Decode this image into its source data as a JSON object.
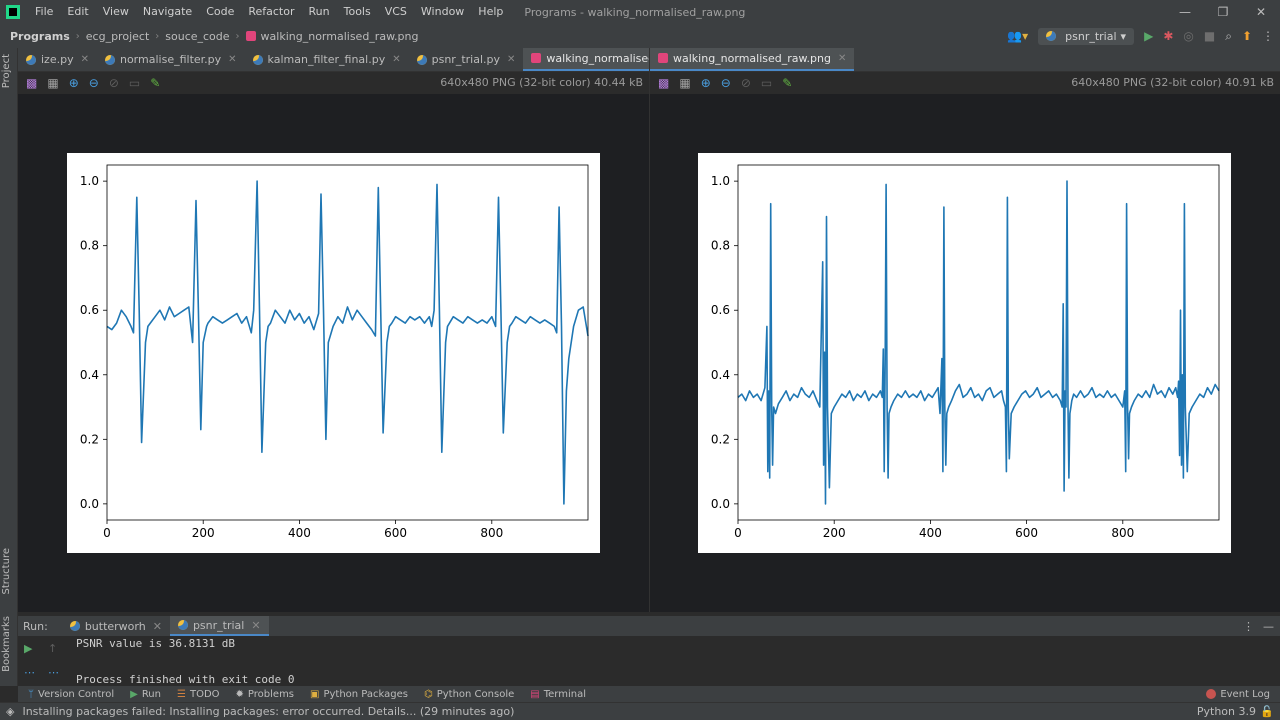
{
  "menu": {
    "items": [
      "File",
      "Edit",
      "View",
      "Navigate",
      "Code",
      "Refactor",
      "Run",
      "Tools",
      "VCS",
      "Window",
      "Help"
    ],
    "window_title": "Programs - walking_normalised_raw.png"
  },
  "navbar": {
    "breadcrumb": [
      "Programs",
      "ecg_project",
      "souce_code",
      "walking_normalised_raw.png"
    ],
    "run_config": "psnr_trial"
  },
  "left_strip": {
    "project": "Project",
    "structure": "Structure",
    "bookmarks": "Bookmarks"
  },
  "editor_left": {
    "tabs": [
      {
        "label": "ize.py",
        "type": "py"
      },
      {
        "label": "normalise_filter.py",
        "type": "py"
      },
      {
        "label": "kalman_filter_final.py",
        "type": "py"
      },
      {
        "label": "psnr_trial.py",
        "type": "py"
      },
      {
        "label": "walking_normalised_filtered.png",
        "type": "png",
        "active": true
      }
    ],
    "image_info": "640x480 PNG (32-bit color) 40.44 kB"
  },
  "editor_right": {
    "tabs": [
      {
        "label": "walking_normalised_raw.png",
        "type": "png",
        "active": true
      }
    ],
    "image_info": "640x480 PNG (32-bit color) 40.91 kB"
  },
  "chart_data": [
    {
      "type": "line",
      "title": "",
      "xlabel": "",
      "ylabel": "",
      "xlim": [
        0,
        1000
      ],
      "ylim": [
        -0.05,
        1.05
      ],
      "xticks": [
        0,
        200,
        400,
        600,
        800
      ],
      "yticks": [
        0.0,
        0.2,
        0.4,
        0.6,
        0.8,
        1.0
      ],
      "xtick_labels": [
        "0",
        "200",
        "400",
        "600",
        "800"
      ],
      "ytick_labels": [
        "0.0",
        "0.2",
        "0.4",
        "0.6",
        "0.8",
        "1.0"
      ],
      "grid": false,
      "color": "#1f77b4",
      "series": [
        {
          "x": [
            0,
            10,
            20,
            30,
            40,
            50,
            55,
            62,
            67,
            72,
            80,
            85,
            90,
            100,
            110,
            120,
            130,
            140,
            150,
            160,
            170,
            178,
            185,
            190,
            195,
            200,
            207,
            210,
            220,
            230,
            240,
            250,
            260,
            270,
            280,
            290,
            300,
            305,
            312,
            317,
            322,
            330,
            335,
            340,
            350,
            360,
            370,
            380,
            390,
            400,
            410,
            420,
            430,
            440,
            445,
            450,
            455,
            460,
            470,
            480,
            490,
            500,
            510,
            520,
            530,
            540,
            550,
            558,
            564,
            569,
            574,
            582,
            587,
            592,
            600,
            610,
            620,
            630,
            640,
            650,
            660,
            670,
            675,
            680,
            686,
            691,
            696,
            704,
            708,
            712,
            720,
            730,
            740,
            750,
            760,
            770,
            780,
            790,
            800,
            808,
            814,
            819,
            824,
            832,
            837,
            842,
            850,
            860,
            870,
            880,
            890,
            900,
            910,
            920,
            930,
            935,
            940,
            945,
            950,
            955,
            960,
            970,
            980,
            990,
            1000
          ],
          "y": [
            0.55,
            0.54,
            0.56,
            0.6,
            0.58,
            0.55,
            0.53,
            0.95,
            0.6,
            0.19,
            0.5,
            0.55,
            0.56,
            0.58,
            0.6,
            0.57,
            0.61,
            0.58,
            0.59,
            0.6,
            0.61,
            0.5,
            0.94,
            0.6,
            0.23,
            0.5,
            0.55,
            0.56,
            0.58,
            0.57,
            0.56,
            0.57,
            0.58,
            0.59,
            0.56,
            0.58,
            0.53,
            0.6,
            1.0,
            0.6,
            0.16,
            0.5,
            0.55,
            0.56,
            0.6,
            0.58,
            0.56,
            0.6,
            0.57,
            0.59,
            0.56,
            0.58,
            0.54,
            0.59,
            0.96,
            0.6,
            0.2,
            0.5,
            0.55,
            0.58,
            0.56,
            0.61,
            0.57,
            0.6,
            0.58,
            0.56,
            0.54,
            0.52,
            0.98,
            0.6,
            0.22,
            0.5,
            0.55,
            0.56,
            0.58,
            0.57,
            0.56,
            0.58,
            0.57,
            0.58,
            0.56,
            0.58,
            0.55,
            0.6,
            0.99,
            0.6,
            0.16,
            0.5,
            0.55,
            0.56,
            0.58,
            0.57,
            0.56,
            0.58,
            0.57,
            0.56,
            0.57,
            0.56,
            0.58,
            0.55,
            0.95,
            0.6,
            0.22,
            0.5,
            0.55,
            0.56,
            0.58,
            0.57,
            0.56,
            0.58,
            0.57,
            0.56,
            0.57,
            0.56,
            0.55,
            0.53,
            0.92,
            0.55,
            0.0,
            0.35,
            0.45,
            0.55,
            0.6,
            0.61,
            0.52
          ]
        }
      ]
    },
    {
      "type": "line",
      "title": "",
      "xlabel": "",
      "ylabel": "",
      "xlim": [
        0,
        1000
      ],
      "ylim": [
        -0.05,
        1.05
      ],
      "xticks": [
        0,
        200,
        400,
        600,
        800
      ],
      "yticks": [
        0.0,
        0.2,
        0.4,
        0.6,
        0.8,
        1.0
      ],
      "xtick_labels": [
        "0",
        "200",
        "400",
        "600",
        "800"
      ],
      "ytick_labels": [
        "0.0",
        "0.2",
        "0.4",
        "0.6",
        "0.8",
        "1.0"
      ],
      "grid": false,
      "color": "#1f77b4",
      "series": [
        {
          "x": [
            0,
            8,
            16,
            24,
            32,
            40,
            48,
            56,
            60,
            62,
            64,
            66,
            68,
            70,
            72,
            74,
            78,
            84,
            92,
            100,
            108,
            116,
            124,
            132,
            140,
            148,
            156,
            164,
            170,
            176,
            178,
            180,
            182,
            184,
            186,
            190,
            194,
            200,
            208,
            216,
            224,
            232,
            240,
            248,
            256,
            264,
            272,
            280,
            288,
            296,
            300,
            302,
            304,
            306,
            308,
            310,
            312,
            314,
            318,
            324,
            332,
            340,
            348,
            356,
            364,
            372,
            380,
            388,
            396,
            404,
            412,
            416,
            420,
            424,
            426,
            428,
            430,
            432,
            434,
            438,
            444,
            452,
            460,
            468,
            476,
            484,
            492,
            500,
            508,
            516,
            524,
            532,
            540,
            548,
            552,
            556,
            558,
            560,
            562,
            564,
            568,
            574,
            582,
            590,
            598,
            606,
            614,
            622,
            630,
            638,
            646,
            654,
            662,
            670,
            674,
            676,
            678,
            680,
            682,
            684,
            686,
            688,
            690,
            692,
            694,
            698,
            704,
            712,
            720,
            728,
            736,
            744,
            752,
            760,
            768,
            776,
            784,
            792,
            800,
            804,
            806,
            808,
            810,
            812,
            814,
            818,
            824,
            832,
            840,
            848,
            856,
            864,
            872,
            880,
            888,
            896,
            904,
            910,
            914,
            916,
            918,
            920,
            922,
            924,
            926,
            928,
            930,
            932,
            934,
            938,
            944,
            952,
            960,
            968,
            976,
            984,
            992,
            1000
          ],
          "y": [
            0.33,
            0.34,
            0.32,
            0.35,
            0.33,
            0.34,
            0.32,
            0.36,
            0.55,
            0.1,
            0.35,
            0.08,
            0.93,
            0.3,
            0.12,
            0.3,
            0.28,
            0.31,
            0.33,
            0.35,
            0.32,
            0.34,
            0.33,
            0.36,
            0.34,
            0.33,
            0.35,
            0.32,
            0.3,
            0.75,
            0.12,
            0.47,
            0.0,
            0.89,
            0.3,
            0.05,
            0.28,
            0.3,
            0.32,
            0.34,
            0.33,
            0.35,
            0.32,
            0.34,
            0.33,
            0.35,
            0.32,
            0.34,
            0.33,
            0.35,
            0.33,
            0.48,
            0.1,
            0.45,
            0.99,
            0.3,
            0.08,
            0.28,
            0.3,
            0.32,
            0.34,
            0.33,
            0.35,
            0.33,
            0.34,
            0.33,
            0.35,
            0.32,
            0.34,
            0.33,
            0.35,
            0.36,
            0.28,
            0.45,
            0.1,
            0.92,
            0.3,
            0.12,
            0.28,
            0.3,
            0.32,
            0.35,
            0.37,
            0.33,
            0.34,
            0.36,
            0.33,
            0.34,
            0.32,
            0.35,
            0.36,
            0.33,
            0.34,
            0.35,
            0.32,
            0.3,
            0.1,
            0.95,
            0.3,
            0.14,
            0.28,
            0.3,
            0.32,
            0.34,
            0.35,
            0.33,
            0.34,
            0.36,
            0.33,
            0.34,
            0.35,
            0.33,
            0.34,
            0.32,
            0.3,
            0.62,
            0.04,
            0.35,
            0.3,
            1.0,
            0.3,
            0.08,
            0.28,
            0.3,
            0.32,
            0.34,
            0.33,
            0.35,
            0.33,
            0.34,
            0.36,
            0.33,
            0.34,
            0.33,
            0.35,
            0.33,
            0.34,
            0.32,
            0.3,
            0.35,
            0.1,
            0.93,
            0.3,
            0.14,
            0.28,
            0.3,
            0.32,
            0.34,
            0.33,
            0.35,
            0.33,
            0.37,
            0.34,
            0.35,
            0.33,
            0.36,
            0.34,
            0.36,
            0.33,
            0.38,
            0.15,
            0.6,
            0.12,
            0.4,
            0.08,
            0.93,
            0.3,
            0.2,
            0.1,
            0.28,
            0.3,
            0.32,
            0.34,
            0.33,
            0.36,
            0.34,
            0.37,
            0.35
          ]
        }
      ]
    }
  ],
  "run_panel": {
    "label": "Run:",
    "tabs": [
      {
        "label": "butterworh"
      },
      {
        "label": "psnr_trial",
        "active": true
      }
    ],
    "console_lines": [
      "PSNR value is 36.8131 dB",
      "Process finished with exit code 0"
    ]
  },
  "tool_windows": [
    "Version Control",
    "Run",
    "TODO",
    "Problems",
    "Python Packages",
    "Python Console",
    "Terminal"
  ],
  "event_log": "Event Log",
  "status": {
    "message": "Installing packages failed: Installing packages: error occurred. Details... (29 minutes ago)",
    "interpreter": "Python 3.9"
  }
}
